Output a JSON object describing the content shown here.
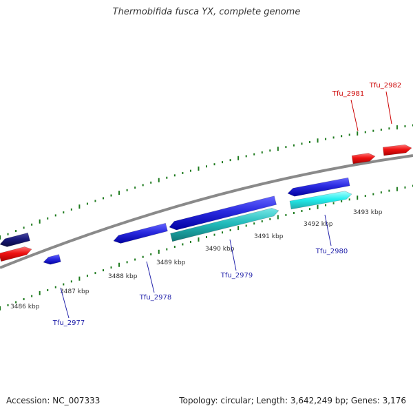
{
  "title": "Thermobifida fusca YX, complete genome",
  "footer": {
    "accession": "Accession: NC_007333",
    "summary": "Topology: circular; Length: 3,642,249 bp; Genes: 3,176"
  },
  "colors": {
    "backbone": "#8a8a8a",
    "tick": "#1d7a1d",
    "forward_gene": "#ee1111",
    "reverse_gene": "#2a2ae0",
    "dark_reverse_gene": "#1a1a7a",
    "cds_teal": "#22bbbb",
    "cds_cyan": "#22eeee",
    "forward_label": "#cc0000",
    "reverse_label": "#2222aa",
    "kbp_label": "#333333"
  },
  "scale_labels": [
    "3486 kbp",
    "3487 kbp",
    "3488 kbp",
    "3489 kbp",
    "3490 kbp",
    "3491 kbp",
    "3492 kbp",
    "3493 kbp"
  ],
  "gene_labels": {
    "forward": [
      "Tfu_2981",
      "Tfu_2982"
    ],
    "reverse": [
      "Tfu_2977",
      "Tfu_2978",
      "Tfu_2979",
      "Tfu_2980"
    ]
  }
}
